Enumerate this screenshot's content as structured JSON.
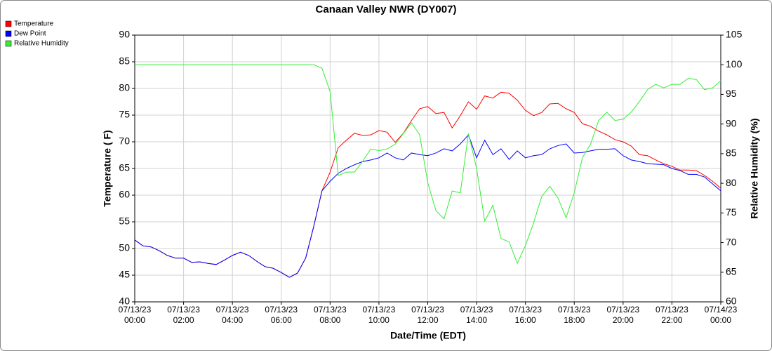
{
  "chart_data": {
    "type": "line",
    "title": "Canaan Valley NWR (DY007)",
    "xlabel": "Date/Time (EDT)",
    "ylabel": "Temperature ( F)",
    "y2label": "Relative Humidity (%)",
    "x": [
      "07/13/23 00:00",
      "07/13/23 00:20",
      "07/13/23 00:40",
      "07/13/23 01:00",
      "07/13/23 01:20",
      "07/13/23 01:40",
      "07/13/23 02:00",
      "07/13/23 02:20",
      "07/13/23 02:40",
      "07/13/23 03:00",
      "07/13/23 03:20",
      "07/13/23 03:40",
      "07/13/23 04:00",
      "07/13/23 04:20",
      "07/13/23 04:40",
      "07/13/23 05:00",
      "07/13/23 05:20",
      "07/13/23 05:40",
      "07/13/23 06:00",
      "07/13/23 06:20",
      "07/13/23 06:40",
      "07/13/23 07:00",
      "07/13/23 07:20",
      "07/13/23 07:40",
      "07/13/23 08:00",
      "07/13/23 08:20",
      "07/13/23 08:40",
      "07/13/23 09:00",
      "07/13/23 09:20",
      "07/13/23 09:40",
      "07/13/23 10:00",
      "07/13/23 10:20",
      "07/13/23 10:40",
      "07/13/23 11:00",
      "07/13/23 11:20",
      "07/13/23 11:40",
      "07/13/23 12:00",
      "07/13/23 12:20",
      "07/13/23 12:40",
      "07/13/23 13:00",
      "07/13/23 13:20",
      "07/13/23 13:40",
      "07/13/23 14:00",
      "07/13/23 14:20",
      "07/13/23 14:40",
      "07/13/23 15:00",
      "07/13/23 15:20",
      "07/13/23 15:40",
      "07/13/23 16:00",
      "07/13/23 16:20",
      "07/13/23 16:40",
      "07/13/23 17:00",
      "07/13/23 17:20",
      "07/13/23 17:40",
      "07/13/23 18:00",
      "07/13/23 18:20",
      "07/13/23 18:40",
      "07/13/23 19:00",
      "07/13/23 19:20",
      "07/13/23 19:40",
      "07/13/23 20:00",
      "07/13/23 20:20",
      "07/13/23 20:40",
      "07/13/23 21:00",
      "07/13/23 21:20",
      "07/13/23 21:40",
      "07/13/23 22:00",
      "07/13/23 22:20",
      "07/13/23 22:40",
      "07/13/23 23:00",
      "07/13/23 23:20",
      "07/13/23 23:40",
      "07/14/23 00:00"
    ],
    "series": [
      {
        "name": "Temperature",
        "color": "#ff0000",
        "values": [
          51.6,
          50.5,
          50.3,
          49.6,
          48.7,
          48.2,
          48.2,
          47.4,
          47.5,
          47.2,
          47.0,
          47.8,
          48.7,
          49.3,
          48.7,
          47.6,
          46.6,
          46.3,
          45.5,
          44.6,
          45.4,
          48.2,
          54.2,
          60.8,
          64.3,
          68.9,
          70.3,
          71.6,
          71.2,
          71.3,
          72.1,
          71.8,
          69.9,
          71.6,
          74.0,
          76.2,
          76.6,
          75.3,
          75.5,
          72.6,
          74.9,
          77.5,
          76.1,
          78.6,
          78.2,
          79.3,
          79.1,
          77.8,
          75.9,
          74.9,
          75.5,
          77.1,
          77.2,
          76.2,
          75.5,
          73.4,
          72.9,
          72.0,
          71.3,
          70.4,
          70.0,
          69.2,
          67.6,
          67.4,
          66.6,
          65.9,
          65.4,
          64.7,
          64.7,
          64.6,
          63.7,
          62.6,
          61.3
        ]
      },
      {
        "name": "Dew Point",
        "color": "#0000ff",
        "values": [
          51.6,
          50.5,
          50.3,
          49.6,
          48.7,
          48.2,
          48.2,
          47.4,
          47.5,
          47.2,
          47.0,
          47.8,
          48.7,
          49.3,
          48.7,
          47.6,
          46.6,
          46.3,
          45.5,
          44.6,
          45.4,
          48.2,
          54.2,
          60.8,
          62.6,
          64.1,
          65.0,
          65.7,
          66.3,
          66.6,
          67.0,
          67.9,
          67.0,
          66.6,
          67.9,
          67.6,
          67.4,
          67.9,
          68.7,
          68.3,
          69.6,
          71.3,
          67.0,
          70.3,
          67.6,
          68.7,
          66.7,
          68.3,
          67.0,
          67.4,
          67.6,
          68.7,
          69.3,
          69.6,
          67.9,
          68.0,
          68.3,
          68.6,
          68.6,
          68.7,
          67.4,
          66.6,
          66.3,
          65.9,
          65.8,
          65.7,
          65.0,
          64.6,
          63.9,
          63.9,
          63.4,
          62.1,
          60.8
        ]
      },
      {
        "name": "Relative Humidity",
        "color": "#33ee33",
        "axis": "y2",
        "values": [
          100,
          100,
          100,
          100,
          100,
          100,
          100,
          100,
          100,
          100,
          100,
          100,
          100,
          100,
          100,
          100,
          100,
          100,
          100,
          100,
          100,
          100,
          100,
          99.4,
          95.5,
          81.3,
          81.9,
          81.9,
          83.7,
          85.8,
          85.5,
          85.8,
          86.6,
          88.4,
          90.2,
          88.2,
          80.1,
          75.4,
          74.0,
          78.7,
          78.4,
          88.4,
          82.5,
          73.6,
          76.3,
          70.7,
          70.1,
          66.5,
          69.5,
          73.3,
          77.8,
          79.5,
          77.5,
          74.2,
          78.4,
          84.3,
          86.6,
          90.6,
          92.0,
          90.6,
          90.8,
          92.0,
          93.8,
          95.8,
          96.7,
          96.1,
          96.7,
          96.7,
          97.7,
          97.5,
          95.8,
          96.1,
          97.3
        ]
      }
    ],
    "xlim": [
      "07/13/23 00:00",
      "07/14/23 00:00"
    ],
    "xticks": [
      "07/13/23 00:00",
      "07/13/23 02:00",
      "07/13/23 04:00",
      "07/13/23 06:00",
      "07/13/23 08:00",
      "07/13/23 10:00",
      "07/13/23 12:00",
      "07/13/23 14:00",
      "07/13/23 16:00",
      "07/13/23 18:00",
      "07/13/23 20:00",
      "07/13/23 22:00",
      "07/14/23 00:00"
    ],
    "ylim": [
      40,
      90
    ],
    "yticks": [
      40,
      45,
      50,
      55,
      60,
      65,
      70,
      75,
      80,
      85,
      90
    ],
    "y2lim": [
      60,
      105
    ],
    "y2ticks": [
      60,
      65,
      70,
      75,
      80,
      85,
      90,
      95,
      100,
      105
    ],
    "grid": true
  }
}
